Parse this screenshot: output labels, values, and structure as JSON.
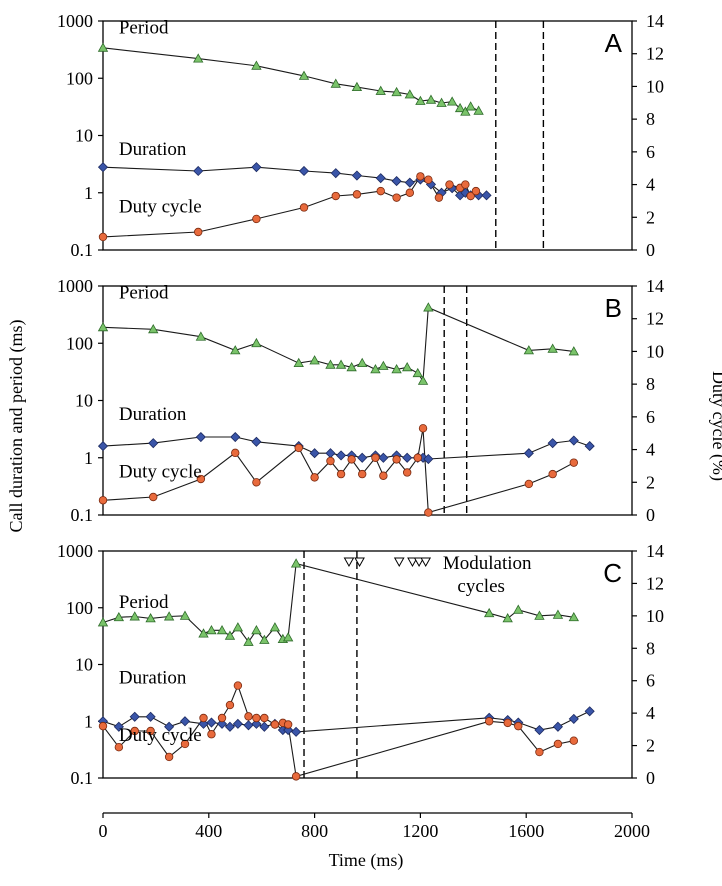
{
  "chart_data": {
    "type": "line",
    "xlabel": "Time (ms)",
    "ylabel_left": "Call duration and period (ms)",
    "ylabel_right": "Duty cycle (%)",
    "x_axis": {
      "range": [
        0,
        2000
      ],
      "ticks": [
        "0",
        "400",
        "800",
        "1200",
        "1600",
        "2000"
      ]
    },
    "y_left": {
      "scale": "log",
      "range": [
        0.1,
        1000
      ],
      "ticks": [
        "0.1",
        "1",
        "10",
        "100",
        "1000"
      ]
    },
    "y_right": {
      "scale": "linear",
      "range": [
        0,
        14
      ],
      "ticks": [
        "0",
        "2",
        "4",
        "6",
        "8",
        "10",
        "12",
        "14"
      ]
    },
    "series_colors": {
      "Period": "#7ac36a",
      "Duration": "#3a55a8",
      "Duty cycle": "#e86a3c"
    },
    "panels": [
      {
        "letter": "A",
        "dashed_lines_x": [
          1485,
          1665
        ],
        "annotations": [
          {
            "text": "Period",
            "anchor": [
              60,
              600
            ]
          },
          {
            "text": "Duration",
            "anchor": [
              60,
              4.6
            ]
          },
          {
            "text": "Duty cycle",
            "anchor": [
              60,
              0.45
            ]
          }
        ],
        "series": [
          {
            "name": "Period",
            "axis": "left",
            "marker": "triangle",
            "x": [
              0,
              360,
              580,
              760,
              880,
              960,
              1050,
              1110,
              1160,
              1200,
              1240,
              1280,
              1320,
              1350,
              1370,
              1390,
              1420
            ],
            "y": [
              340,
              220,
              165,
              110,
              80,
              70,
              60,
              57,
              52,
              40,
              42,
              37,
              39,
              30,
              26,
              32,
              27
            ]
          },
          {
            "name": "Duration",
            "axis": "left",
            "marker": "diamond",
            "x": [
              0,
              360,
              580,
              760,
              880,
              960,
              1050,
              1110,
              1160,
              1200,
              1240,
              1280,
              1320,
              1350,
              1370,
              1390,
              1420,
              1450
            ],
            "y": [
              2.8,
              2.4,
              2.8,
              2.4,
              2.2,
              2.0,
              1.8,
              1.6,
              1.5,
              1.7,
              1.4,
              1.0,
              1.2,
              0.9,
              1.0,
              0.9,
              0.9,
              0.9
            ]
          },
          {
            "name": "Duty cycle",
            "axis": "right",
            "marker": "circle",
            "x": [
              0,
              360,
              580,
              760,
              880,
              960,
              1050,
              1110,
              1160,
              1200,
              1230,
              1270,
              1310,
              1350,
              1370,
              1390,
              1410
            ],
            "y": [
              0.8,
              1.1,
              1.9,
              2.6,
              3.3,
              3.4,
              3.6,
              3.2,
              3.5,
              4.5,
              4.3,
              3.2,
              4.0,
              3.8,
              4.0,
              3.3,
              3.6
            ]
          }
        ]
      },
      {
        "letter": "B",
        "dashed_lines_x": [
          1290,
          1375
        ],
        "annotations": [
          {
            "text": "Period",
            "anchor": [
              60,
              600
            ]
          },
          {
            "text": "Duration",
            "anchor": [
              60,
              4.6
            ]
          },
          {
            "text": "Duty cycle",
            "anchor": [
              60,
              0.45
            ]
          }
        ],
        "series": [
          {
            "name": "Period",
            "axis": "left",
            "marker": "triangle",
            "x": [
              0,
              190,
              370,
              500,
              580,
              740,
              800,
              860,
              900,
              940,
              980,
              1030,
              1060,
              1110,
              1150,
              1190,
              1210,
              1230,
              1610,
              1700,
              1780
            ],
            "y": [
              190,
              175,
              130,
              75,
              100,
              45,
              50,
              42,
              42,
              38,
              45,
              35,
              40,
              35,
              38,
              30,
              22,
              420,
              75,
              80,
              72
            ]
          },
          {
            "name": "Duration",
            "axis": "left",
            "marker": "diamond",
            "x": [
              0,
              190,
              370,
              500,
              580,
              740,
              800,
              860,
              900,
              940,
              980,
              1030,
              1060,
              1110,
              1150,
              1190,
              1210,
              1230,
              1610,
              1700,
              1780,
              1840
            ],
            "y": [
              1.6,
              1.8,
              2.3,
              2.3,
              1.9,
              1.6,
              1.2,
              1.2,
              1.1,
              1.1,
              1.0,
              1.1,
              1.0,
              1.1,
              1.0,
              1.0,
              1.0,
              0.95,
              1.2,
              1.8,
              2.0,
              1.6
            ]
          },
          {
            "name": "Duty cycle",
            "axis": "right",
            "marker": "circle",
            "x": [
              0,
              190,
              370,
              500,
              580,
              740,
              800,
              860,
              900,
              940,
              980,
              1030,
              1060,
              1110,
              1150,
              1190,
              1210,
              1230,
              1610,
              1700,
              1780
            ],
            "y": [
              0.9,
              1.1,
              2.2,
              3.8,
              2.0,
              4.1,
              2.3,
              3.3,
              2.5,
              3.4,
              2.5,
              3.5,
              2.4,
              3.4,
              2.6,
              3.5,
              5.3,
              0.15,
              1.9,
              2.5,
              3.2
            ]
          }
        ]
      },
      {
        "letter": "C",
        "dashed_lines_x": [
          760,
          960
        ],
        "modulation_markers_x": [
          930,
          970,
          1120,
          1170,
          1195,
          1220
        ],
        "modulation_label": [
          "Modulation",
          "cycles"
        ],
        "annotations": [
          {
            "text": "Period",
            "anchor": [
              60,
              100
            ]
          },
          {
            "text": "Duration",
            "anchor": [
              60,
              4.6
            ]
          },
          {
            "text": "Duty cycle",
            "anchor": [
              60,
              0.45
            ]
          }
        ],
        "series": [
          {
            "name": "Period",
            "axis": "left",
            "marker": "triangle",
            "x": [
              0,
              60,
              120,
              180,
              250,
              310,
              380,
              410,
              450,
              480,
              510,
              550,
              580,
              610,
              650,
              680,
              700,
              730,
              1460,
              1530,
              1570,
              1650,
              1720,
              1780
            ],
            "y": [
              55,
              68,
              70,
              65,
              70,
              72,
              35,
              40,
              40,
              32,
              45,
              25,
              40,
              27,
              45,
              28,
              30,
              600,
              80,
              65,
              92,
              72,
              75,
              68
            ]
          },
          {
            "name": "Duration",
            "axis": "left",
            "marker": "diamond",
            "x": [
              0,
              60,
              120,
              180,
              250,
              310,
              380,
              410,
              450,
              480,
              510,
              550,
              580,
              610,
              650,
              680,
              700,
              730,
              1460,
              1530,
              1570,
              1650,
              1720,
              1780,
              1840
            ],
            "y": [
              1.0,
              0.8,
              1.2,
              1.2,
              0.8,
              1.0,
              0.9,
              0.95,
              0.9,
              0.8,
              0.9,
              0.85,
              0.9,
              0.8,
              0.9,
              0.7,
              0.7,
              0.65,
              1.15,
              1.05,
              0.95,
              0.7,
              0.8,
              1.1,
              1.5
            ]
          },
          {
            "name": "Duty cycle",
            "axis": "right",
            "marker": "circle",
            "x": [
              0,
              60,
              120,
              180,
              250,
              310,
              380,
              410,
              450,
              480,
              510,
              550,
              580,
              610,
              650,
              680,
              700,
              730,
              1460,
              1530,
              1570,
              1650,
              1720,
              1780
            ],
            "y": [
              3.2,
              1.9,
              2.9,
              2.9,
              1.3,
              2.1,
              3.7,
              2.7,
              3.7,
              4.5,
              5.7,
              3.8,
              3.7,
              3.7,
              3.3,
              3.4,
              3.3,
              0.1,
              3.5,
              3.4,
              3.2,
              1.6,
              2.1,
              2.3
            ]
          }
        ]
      }
    ]
  }
}
